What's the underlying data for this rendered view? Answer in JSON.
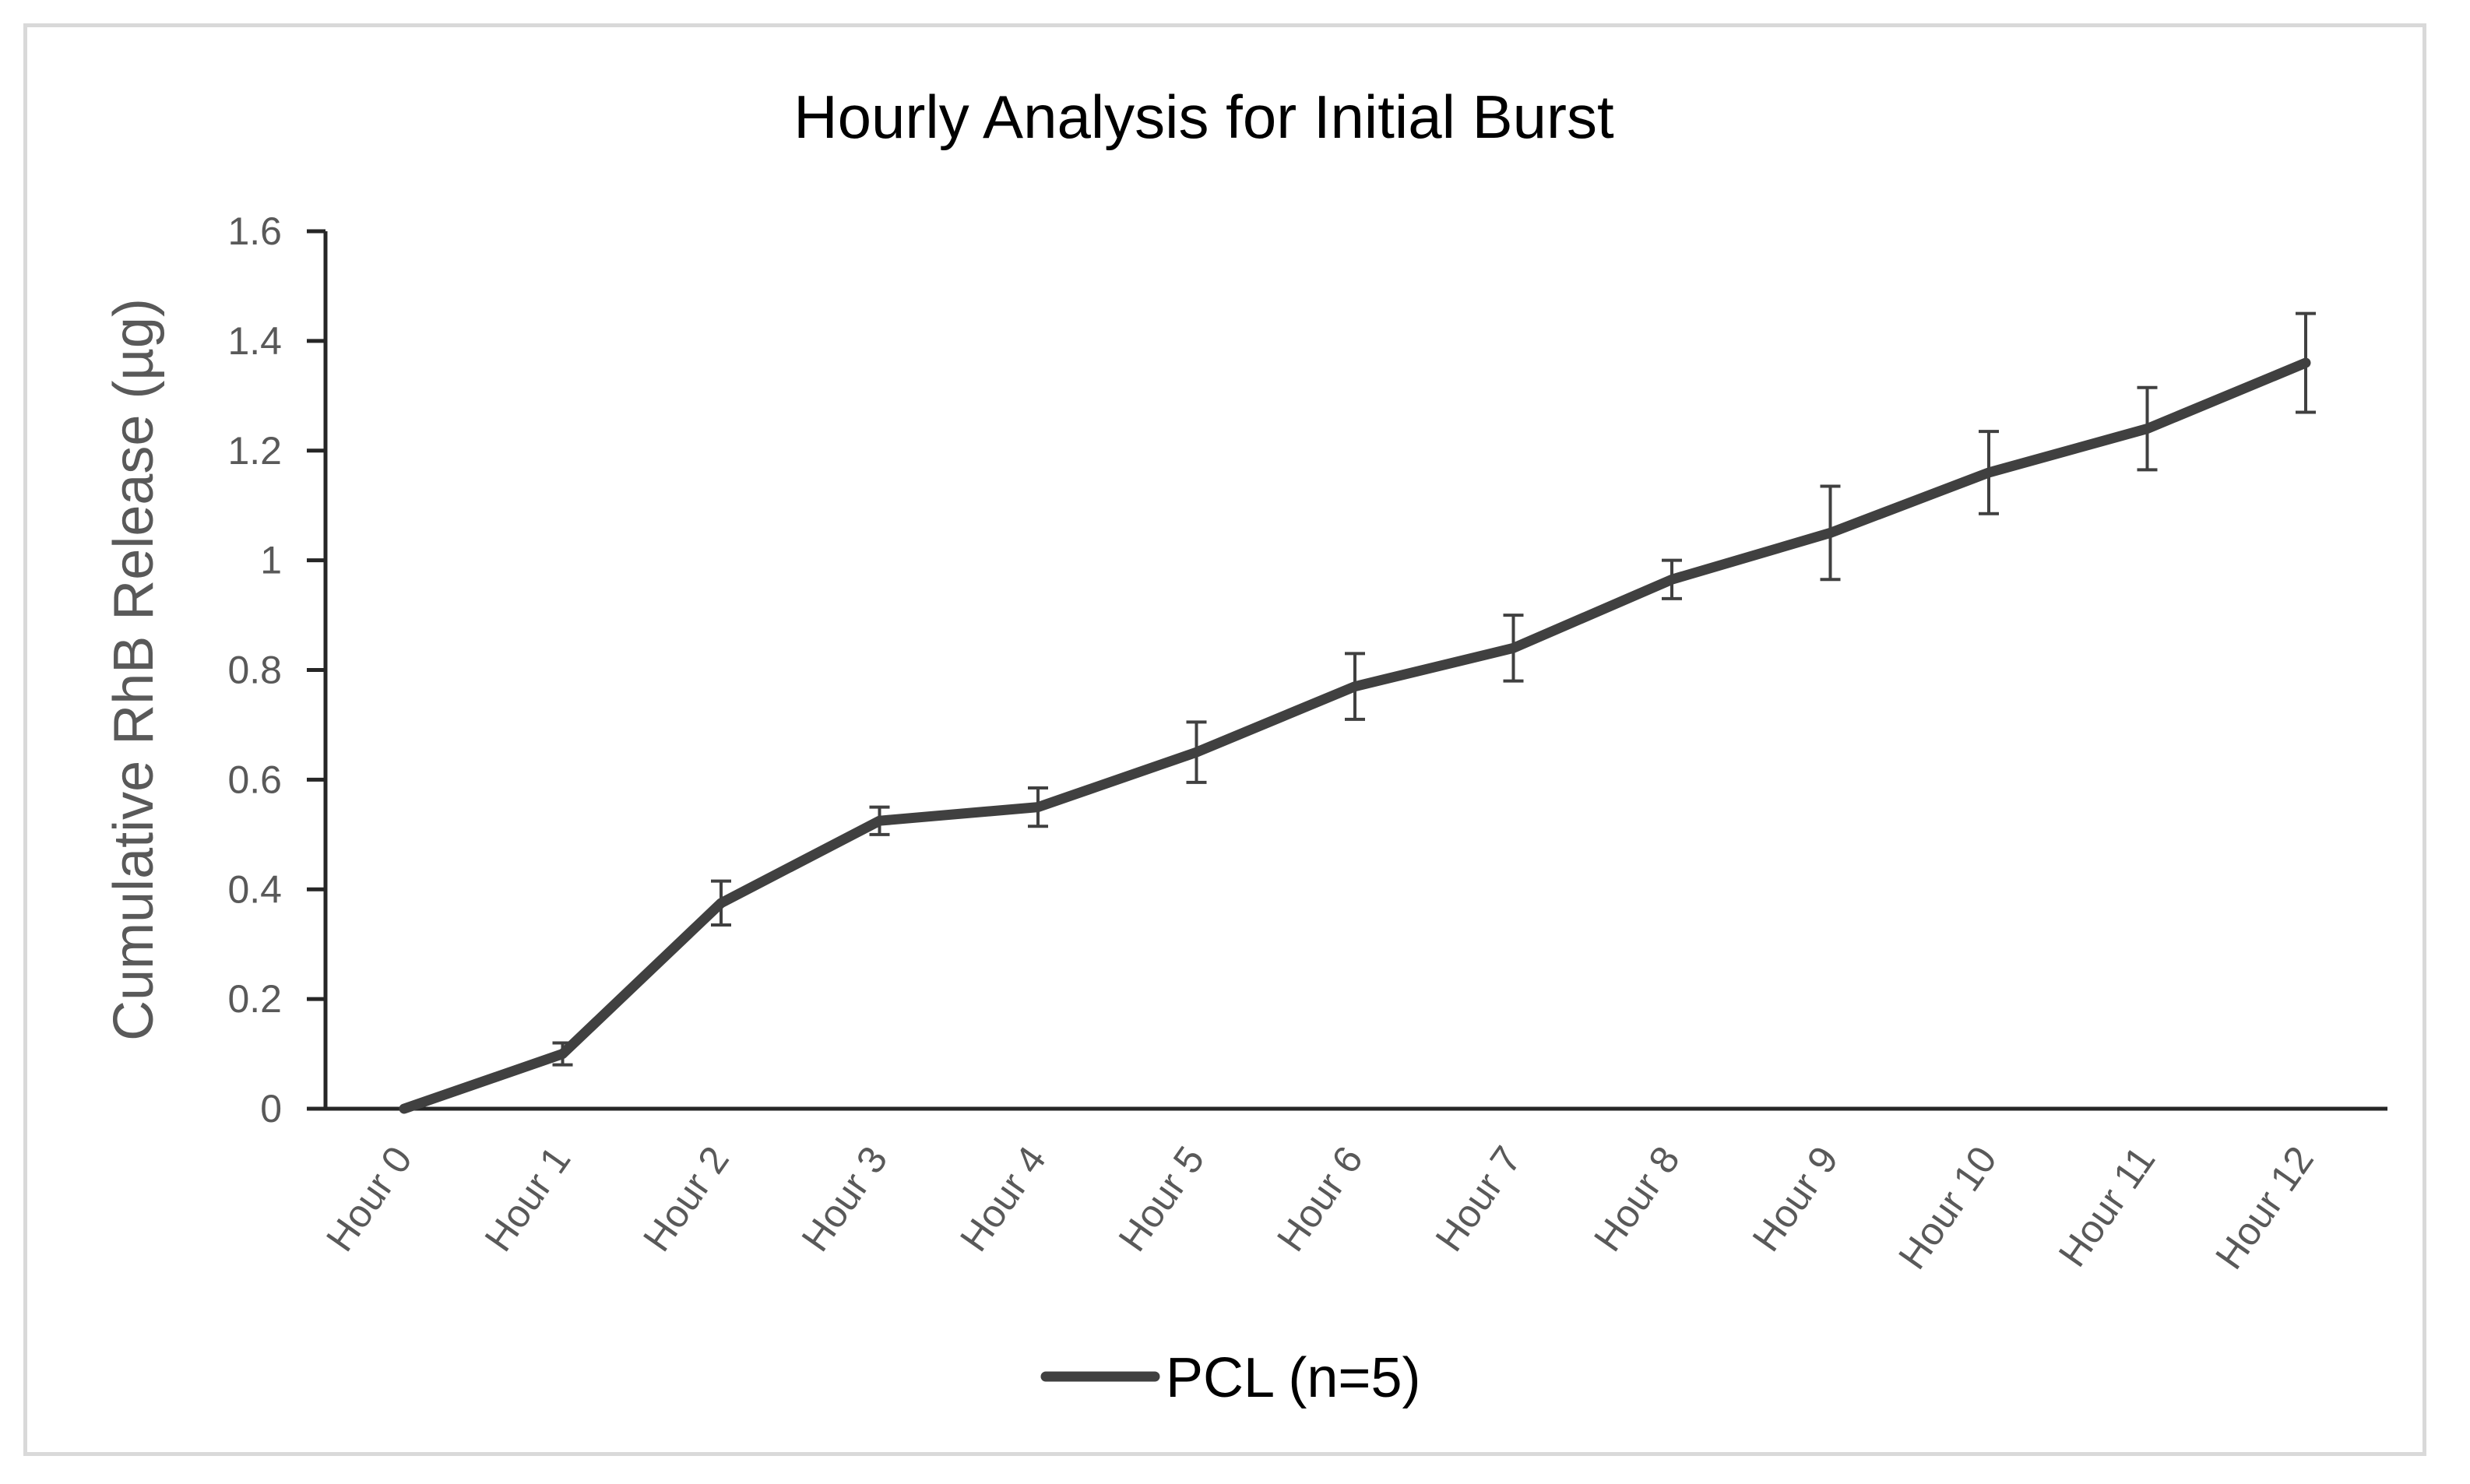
{
  "chart_data": {
    "type": "line",
    "title": "Hourly Analysis for Initial Burst",
    "xlabel": "",
    "ylabel": "Cumulative RhB Release (µg)",
    "categories": [
      "Hour 0",
      "Hour 1",
      "Hour 2",
      "Hour 3",
      "Hour 4",
      "Hour 5",
      "Hour 6",
      "Hour 7",
      "Hour 8",
      "Hour 9",
      "Hour 10",
      "Hour 11",
      "Hour 12"
    ],
    "series": [
      {
        "name": "PCL (n=5)",
        "values": [
          0,
          0.1,
          0.375,
          0.525,
          0.55,
          0.65,
          0.77,
          0.84,
          0.965,
          1.05,
          1.16,
          1.24,
          1.36
        ],
        "error": [
          0,
          0.02,
          0.04,
          0.025,
          0.035,
          0.055,
          0.06,
          0.06,
          0.035,
          0.085,
          0.075,
          0.075,
          0.09
        ],
        "color": "#404040"
      }
    ],
    "ylim": [
      0,
      1.6
    ],
    "yticks": [
      "0",
      "0.2",
      "0.4",
      "0.6",
      "0.8",
      "1",
      "1.2",
      "1.4",
      "1.6"
    ],
    "grid": false,
    "legend_position": "bottom"
  }
}
